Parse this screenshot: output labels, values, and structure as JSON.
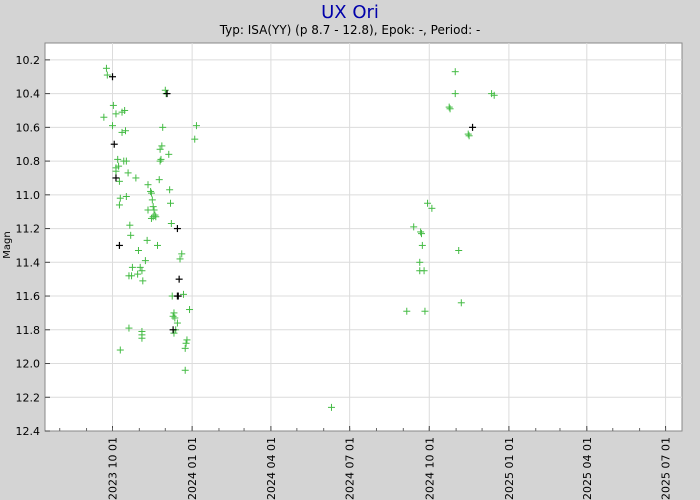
{
  "chart_data": {
    "type": "scatter",
    "title": "UX Ori",
    "subtitle": "Typ: ISA(YY) (p 8.7 - 12.8), Epok: -, Period: -",
    "ylabel": "Magn",
    "xlabel": "",
    "y_inverted": true,
    "ylim": [
      10.1,
      12.4
    ],
    "yticks": [
      "10.2",
      "10.4",
      "10.6",
      "10.8",
      "11.0",
      "11.2",
      "11.4",
      "11.6",
      "11.8",
      "12.0",
      "12.2",
      "12.4"
    ],
    "xlim": [
      "2023-07-15",
      "2025-07-20"
    ],
    "xticks": [
      "2023 10 01",
      "2024 01 01",
      "2024 04 01",
      "2024 07 01",
      "2024 10 01",
      "2025 01 01",
      "2025 04 01",
      "2025 07 01"
    ],
    "grid": true,
    "series": [
      {
        "color": "#44bb44",
        "marker": "plus",
        "points": [
          [
            "2023-09-24",
            10.25
          ],
          [
            "2023-09-25",
            10.29
          ],
          [
            "2023-09-21",
            10.54
          ],
          [
            "2023-10-02",
            10.47
          ],
          [
            "2023-10-05",
            10.52
          ],
          [
            "2023-10-01",
            10.59
          ],
          [
            "2023-10-07",
            10.79
          ],
          [
            "2023-10-05",
            10.84
          ],
          [
            "2023-10-05",
            10.86
          ],
          [
            "2023-10-08",
            10.83
          ],
          [
            "2023-10-09",
            11.06
          ],
          [
            "2023-10-10",
            11.02
          ],
          [
            "2023-10-09",
            10.92
          ],
          [
            "2023-10-12",
            10.51
          ],
          [
            "2023-10-15",
            10.5
          ],
          [
            "2023-10-12",
            10.63
          ],
          [
            "2023-10-16",
            10.62
          ],
          [
            "2023-10-14",
            10.8
          ],
          [
            "2023-10-17",
            10.8
          ],
          [
            "2023-10-19",
            10.87
          ],
          [
            "2023-10-17",
            11.01
          ],
          [
            "2023-10-21",
            11.18
          ],
          [
            "2023-10-22",
            11.24
          ],
          [
            "2023-10-20",
            11.48
          ],
          [
            "2023-10-24",
            11.43
          ],
          [
            "2023-10-23",
            11.48
          ],
          [
            "2023-10-20",
            11.79
          ],
          [
            "2023-10-10",
            11.92
          ],
          [
            "2023-10-28",
            10.9
          ],
          [
            "2023-10-31",
            11.33
          ],
          [
            "2023-11-02",
            11.43
          ],
          [
            "2023-10-30",
            11.47
          ],
          [
            "2023-11-04",
            11.45
          ],
          [
            "2023-11-05",
            11.51
          ],
          [
            "2023-11-04",
            11.81
          ],
          [
            "2023-11-04",
            11.83
          ],
          [
            "2023-11-04",
            11.85
          ],
          [
            "2023-11-08",
            11.39
          ],
          [
            "2023-11-10",
            11.27
          ],
          [
            "2023-11-11",
            11.09
          ],
          [
            "2023-11-11",
            10.94
          ],
          [
            "2023-11-14",
            10.98
          ],
          [
            "2023-11-15",
            10.99
          ],
          [
            "2023-11-16",
            11.03
          ],
          [
            "2023-11-17",
            11.07
          ],
          [
            "2023-11-18",
            11.09
          ],
          [
            "2023-11-17",
            11.13
          ],
          [
            "2023-11-15",
            11.14
          ],
          [
            "2023-11-19",
            11.12
          ],
          [
            "2023-11-20",
            11.13
          ],
          [
            "2023-11-22",
            11.3
          ],
          [
            "2023-11-24",
            10.91
          ],
          [
            "2023-11-25",
            10.8
          ],
          [
            "2023-11-26",
            10.79
          ],
          [
            "2023-11-25",
            10.73
          ],
          [
            "2023-11-27",
            10.71
          ],
          [
            "2023-11-28",
            10.6
          ],
          [
            "2023-12-01",
            10.38
          ],
          [
            "2023-12-02",
            10.4
          ],
          [
            "2023-12-05",
            10.76
          ],
          [
            "2023-12-06",
            10.97
          ],
          [
            "2023-12-07",
            11.05
          ],
          [
            "2023-12-08",
            11.17
          ],
          [
            "2023-12-09",
            11.6
          ],
          [
            "2023-12-11",
            11.7
          ],
          [
            "2023-12-10",
            11.72
          ],
          [
            "2023-12-12",
            11.73
          ],
          [
            "2023-12-13",
            11.8
          ],
          [
            "2023-12-11",
            11.82
          ],
          [
            "2023-12-15",
            11.76
          ],
          [
            "2023-12-18",
            11.38
          ],
          [
            "2023-12-20",
            11.35
          ],
          [
            "2023-12-22",
            11.59
          ],
          [
            "2023-12-25",
            11.88
          ],
          [
            "2023-12-24",
            11.91
          ],
          [
            "2023-12-26",
            11.86
          ],
          [
            "2023-12-24",
            12.04
          ],
          [
            "2023-12-29",
            11.68
          ],
          [
            "2024-01-06",
            10.59
          ],
          [
            "2024-01-04",
            10.67
          ],
          [
            "2024-06-10",
            12.26
          ],
          [
            "2024-09-05",
            11.69
          ],
          [
            "2024-09-13",
            11.19
          ],
          [
            "2024-09-20",
            11.4
          ],
          [
            "2024-09-20",
            11.45
          ],
          [
            "2024-09-21",
            11.22
          ],
          [
            "2024-09-22",
            11.23
          ],
          [
            "2024-09-23",
            11.3
          ],
          [
            "2024-09-25",
            11.45
          ],
          [
            "2024-09-26",
            11.69
          ],
          [
            "2024-09-29",
            11.05
          ],
          [
            "2024-10-04",
            11.08
          ],
          [
            "2024-10-24",
            10.48
          ],
          [
            "2024-10-25",
            10.49
          ],
          [
            "2024-10-31",
            10.4
          ],
          [
            "2024-10-31",
            10.27
          ],
          [
            "2024-11-04",
            11.33
          ],
          [
            "2024-11-07",
            11.64
          ],
          [
            "2024-11-15",
            10.64
          ],
          [
            "2024-11-16",
            10.65
          ],
          [
            "2024-12-12",
            10.4
          ],
          [
            "2024-12-15",
            10.41
          ]
        ]
      },
      {
        "color": "#000000",
        "marker": "plus",
        "points": [
          [
            "2023-10-01",
            10.3
          ],
          [
            "2023-10-03",
            10.7
          ],
          [
            "2023-10-05",
            10.9
          ],
          [
            "2023-10-09",
            11.3
          ],
          [
            "2023-12-03",
            10.4
          ],
          [
            "2023-12-15",
            11.2
          ],
          [
            "2023-12-15",
            11.6
          ],
          [
            "2023-12-17",
            11.5
          ],
          [
            "2023-12-16",
            11.6
          ],
          [
            "2023-12-10",
            11.8
          ],
          [
            "2024-11-20",
            10.6
          ]
        ]
      }
    ]
  }
}
